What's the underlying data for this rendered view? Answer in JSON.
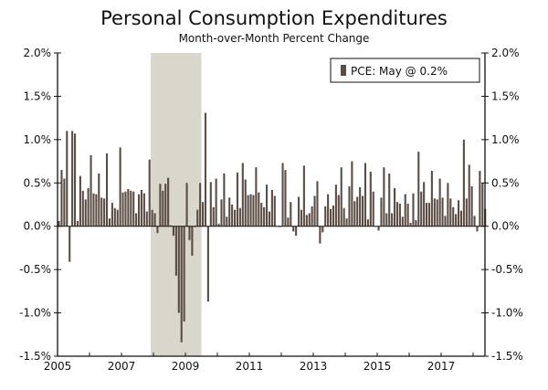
{
  "chart_data": {
    "type": "bar",
    "title": "Personal Consumption Expenditures",
    "subtitle": "Month-over-Month Percent Change",
    "xlabel": "",
    "ylabel": "",
    "start": "2005-01",
    "end": "2018-05",
    "frequency": "monthly",
    "ylim": [
      -1.5,
      2.0
    ],
    "yticks": [
      2.0,
      1.5,
      1.0,
      0.5,
      0.0,
      -0.5,
      -1.0,
      -1.5
    ],
    "ytick_labels": [
      "2.0%",
      "1.5%",
      "1.0%",
      "0.5%",
      "0.0%",
      "-0.5%",
      "-1.0%",
      "-1.5%"
    ],
    "xtick_labels": [
      "2005",
      "2007",
      "2009",
      "2011",
      "2013",
      "2015",
      "2017"
    ],
    "recession": {
      "start": "2007-12",
      "end": "2009-06"
    },
    "legend": {
      "label": "PCE: May @ 0.2%",
      "placement": "top-right"
    },
    "colors": {
      "bar": "#5b4c44",
      "recession": "#d9d6cb",
      "axis": "#111111"
    },
    "series": [
      {
        "name": "PCE",
        "values": [
          0.06,
          0.65,
          0.55,
          1.1,
          -0.41,
          1.1,
          1.07,
          0.06,
          0.58,
          0.41,
          0.31,
          0.44,
          0.82,
          0.38,
          0.37,
          0.61,
          0.33,
          0.32,
          0.84,
          0.09,
          0.27,
          0.21,
          0.19,
          0.91,
          0.39,
          0.4,
          0.43,
          0.41,
          0.4,
          0.15,
          0.37,
          0.42,
          0.38,
          0.17,
          0.77,
          0.19,
          0.15,
          -0.08,
          0.49,
          0.41,
          0.49,
          0.56,
          0.01,
          -0.11,
          -0.57,
          -1.0,
          -1.34,
          -1.1,
          0.5,
          -0.16,
          -0.34,
          -0.01,
          0.19,
          0.5,
          0.28,
          1.31,
          -0.87,
          0.51,
          0.22,
          0.55,
          0.03,
          0.31,
          0.61,
          0.11,
          0.33,
          0.25,
          0.19,
          0.62,
          0.21,
          0.73,
          0.54,
          0.36,
          0.37,
          0.36,
          0.68,
          0.39,
          0.27,
          0.22,
          0.48,
          0.17,
          0.42,
          0.35,
          0.0,
          -0.01,
          0.73,
          0.65,
          0.1,
          0.28,
          -0.06,
          -0.11,
          0.34,
          0.19,
          0.7,
          0.13,
          0.15,
          0.23,
          0.35,
          0.52,
          -0.2,
          -0.07,
          0.23,
          0.37,
          0.2,
          0.24,
          0.48,
          0.36,
          0.68,
          0.21,
          0.09,
          0.46,
          0.75,
          0.29,
          0.34,
          0.45,
          0.35,
          0.73,
          0.08,
          0.63,
          0.4,
          0.0,
          -0.05,
          0.33,
          0.68,
          0.15,
          0.61,
          0.15,
          0.44,
          0.28,
          0.26,
          0.11,
          0.37,
          0.26,
          0.04,
          0.38,
          0.07,
          0.86,
          0.4,
          0.51,
          0.27,
          0.27,
          0.64,
          0.32,
          0.31,
          0.55,
          0.33,
          0.12,
          0.5,
          0.32,
          0.22,
          0.14,
          0.3,
          0.18,
          1.0,
          0.32,
          0.71,
          0.46,
          0.12,
          -0.06,
          0.64,
          0.5,
          0.2
        ]
      }
    ]
  }
}
